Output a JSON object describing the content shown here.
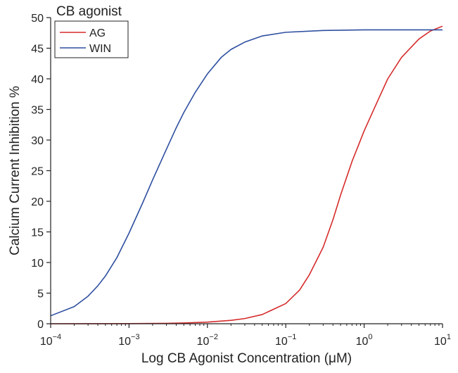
{
  "chart_data": {
    "type": "line",
    "title": "",
    "xlabel": "Log CB Agonist Concentration (μM)",
    "ylabel": "Calcium Current Inhibition %",
    "xscale": "log",
    "xlim": [
      0.0001,
      10
    ],
    "ylim": [
      0,
      50
    ],
    "grid": false,
    "x_ticks": [
      {
        "base": "10",
        "exp": "−4",
        "value": 0.0001
      },
      {
        "base": "10",
        "exp": "−3",
        "value": 0.001
      },
      {
        "base": "10",
        "exp": "−2",
        "value": 0.01
      },
      {
        "base": "10",
        "exp": "−1",
        "value": 0.1
      },
      {
        "base": "10",
        "exp": "0",
        "value": 1
      },
      {
        "base": "10",
        "exp": "1",
        "value": 10
      }
    ],
    "y_ticks": [
      "0",
      "5",
      "10",
      "15",
      "20",
      "25",
      "30",
      "35",
      "40",
      "45",
      "50"
    ],
    "legend": {
      "title": "CB agonist",
      "position": "top-left"
    },
    "series": [
      {
        "name": "AG",
        "color": "#d62b2b",
        "points": [
          [
            0.0001,
            0.0
          ],
          [
            0.001,
            0.02
          ],
          [
            0.003,
            0.07
          ],
          [
            0.005,
            0.12
          ],
          [
            0.01,
            0.27
          ],
          [
            0.02,
            0.55
          ],
          [
            0.03,
            0.85
          ],
          [
            0.05,
            1.5
          ],
          [
            0.1,
            3.3
          ],
          [
            0.15,
            5.5
          ],
          [
            0.2,
            8.0
          ],
          [
            0.3,
            12.5
          ],
          [
            0.4,
            17.0
          ],
          [
            0.5,
            21.0
          ],
          [
            0.7,
            26.5
          ],
          [
            1.0,
            31.5
          ],
          [
            1.5,
            36.5
          ],
          [
            2.0,
            40.0
          ],
          [
            3.0,
            43.5
          ],
          [
            5.0,
            46.5
          ],
          [
            7.0,
            47.8
          ],
          [
            10.0,
            48.6
          ]
        ]
      },
      {
        "name": "WIN",
        "color": "#2e4fa0",
        "points": [
          [
            0.0001,
            1.3
          ],
          [
            0.0002,
            2.8
          ],
          [
            0.0003,
            4.5
          ],
          [
            0.0004,
            6.2
          ],
          [
            0.0005,
            7.8
          ],
          [
            0.0007,
            10.8
          ],
          [
            0.001,
            14.8
          ],
          [
            0.0015,
            19.8
          ],
          [
            0.002,
            23.5
          ],
          [
            0.003,
            28.5
          ],
          [
            0.004,
            32.0
          ],
          [
            0.005,
            34.5
          ],
          [
            0.007,
            37.8
          ],
          [
            0.01,
            40.8
          ],
          [
            0.015,
            43.5
          ],
          [
            0.02,
            44.8
          ],
          [
            0.03,
            46.0
          ],
          [
            0.05,
            47.0
          ],
          [
            0.1,
            47.6
          ],
          [
            0.3,
            47.9
          ],
          [
            1.0,
            48.0
          ],
          [
            3.0,
            48.0
          ],
          [
            10.0,
            48.0
          ]
        ]
      }
    ]
  }
}
